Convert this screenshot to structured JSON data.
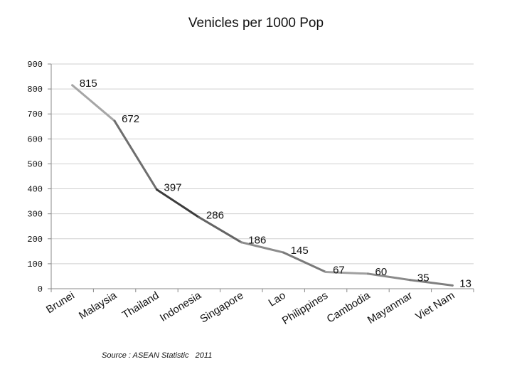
{
  "chart_data": {
    "type": "line",
    "title": "Venicles per 1000 Pop",
    "categories": [
      "Brunei",
      "Malaysia",
      "Thailand",
      "Indonesia",
      "Singapore",
      "Lao",
      "Philippines",
      "Cambodia",
      "Mayanmar",
      "Viet Nam"
    ],
    "values": [
      815,
      672,
      397,
      286,
      186,
      145,
      67,
      60,
      35,
      13
    ],
    "data_labels": [
      "815",
      "672",
      "397",
      "286",
      "186",
      "145",
      "67",
      "60",
      "35",
      "13"
    ],
    "y_ticks": [
      "0",
      "100",
      "200",
      "300",
      "400",
      "500",
      "600",
      "700",
      "800",
      "900"
    ],
    "ylim": [
      0,
      900
    ],
    "grid": true,
    "legend": "none",
    "segment_colors": [
      "#a6a6a6",
      "#6e6e6e",
      "#3c3c3c",
      "#646464",
      "#8c8c8c",
      "#7a7a7a",
      "#a0a0a0",
      "#8a8a8a",
      "#7f7f7f"
    ]
  },
  "source": {
    "label": "Source :",
    "text": "ASEAN Statistic   2011"
  },
  "colors": {
    "gridline": "#cfcfcf",
    "axis": "#888888"
  }
}
